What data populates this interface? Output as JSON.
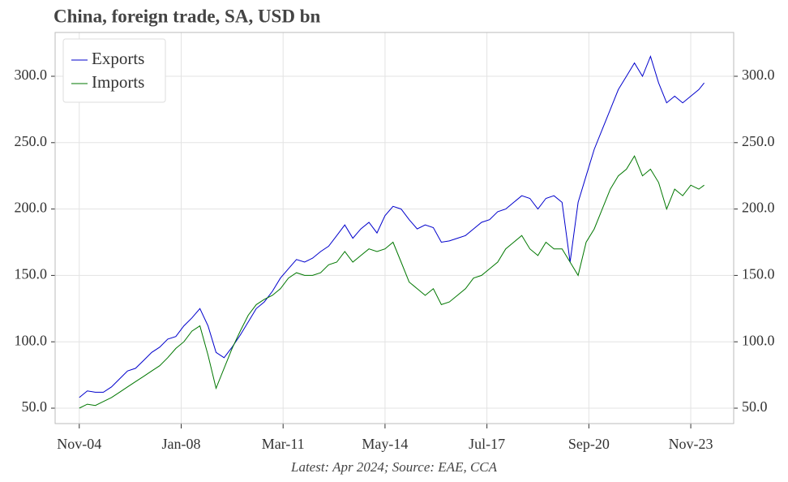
{
  "chart_data": {
    "type": "line",
    "title": "China, foreign trade, SA, USD bn",
    "footnote": "Latest: Apr 2024; Source: EAE, CCA",
    "x": [
      "2004-11",
      "2005-02",
      "2005-05",
      "2005-08",
      "2005-11",
      "2006-02",
      "2006-05",
      "2006-08",
      "2006-11",
      "2007-02",
      "2007-05",
      "2007-08",
      "2007-11",
      "2008-02",
      "2008-05",
      "2008-08",
      "2008-11",
      "2009-02",
      "2009-05",
      "2009-08",
      "2009-11",
      "2010-02",
      "2010-05",
      "2010-08",
      "2010-11",
      "2011-02",
      "2011-05",
      "2011-08",
      "2011-11",
      "2012-02",
      "2012-05",
      "2012-08",
      "2012-11",
      "2013-02",
      "2013-05",
      "2013-08",
      "2013-11",
      "2014-02",
      "2014-05",
      "2014-08",
      "2014-11",
      "2015-02",
      "2015-05",
      "2015-08",
      "2015-11",
      "2016-02",
      "2016-05",
      "2016-08",
      "2016-11",
      "2017-02",
      "2017-05",
      "2017-08",
      "2017-11",
      "2018-02",
      "2018-05",
      "2018-08",
      "2018-11",
      "2019-02",
      "2019-05",
      "2019-08",
      "2019-11",
      "2020-02",
      "2020-05",
      "2020-08",
      "2020-11",
      "2021-02",
      "2021-05",
      "2021-08",
      "2021-11",
      "2022-02",
      "2022-05",
      "2022-08",
      "2022-11",
      "2023-02",
      "2023-05",
      "2023-08",
      "2023-11",
      "2024-02",
      "2024-04"
    ],
    "series": [
      {
        "name": "Exports",
        "color": "#0000cc",
        "values": [
          58,
          63,
          62,
          62,
          66,
          72,
          78,
          80,
          86,
          92,
          96,
          102,
          104,
          112,
          118,
          125,
          112,
          92,
          88,
          96,
          105,
          115,
          125,
          130,
          138,
          148,
          155,
          162,
          160,
          163,
          168,
          172,
          180,
          188,
          178,
          185,
          190,
          182,
          195,
          202,
          200,
          192,
          185,
          188,
          186,
          175,
          176,
          178,
          180,
          185,
          190,
          192,
          198,
          200,
          205,
          210,
          208,
          200,
          208,
          210,
          205,
          160,
          205,
          225,
          245,
          260,
          275,
          290,
          300,
          310,
          300,
          315,
          295,
          280,
          285,
          280,
          285,
          290,
          295
        ]
      },
      {
        "name": "Imports",
        "color": "#007700",
        "values": [
          50,
          53,
          52,
          55,
          58,
          62,
          66,
          70,
          74,
          78,
          82,
          88,
          95,
          100,
          108,
          112,
          90,
          65,
          80,
          95,
          108,
          120,
          128,
          132,
          135,
          140,
          148,
          152,
          150,
          150,
          152,
          158,
          160,
          168,
          160,
          165,
          170,
          168,
          170,
          175,
          160,
          145,
          140,
          135,
          140,
          128,
          130,
          135,
          140,
          148,
          150,
          155,
          160,
          170,
          175,
          180,
          170,
          165,
          175,
          170,
          170,
          160,
          150,
          175,
          185,
          200,
          215,
          225,
          230,
          240,
          225,
          230,
          220,
          200,
          215,
          210,
          218,
          215,
          218
        ]
      }
    ],
    "xlim": [
      "2004-02",
      "2025-03"
    ],
    "xticks": [
      {
        "value": "2004-11",
        "label": "Nov-04"
      },
      {
        "value": "2008-01",
        "label": "Jan-08"
      },
      {
        "value": "2011-03",
        "label": "Mar-11"
      },
      {
        "value": "2014-05",
        "label": "May-14"
      },
      {
        "value": "2017-07",
        "label": "Jul-17"
      },
      {
        "value": "2020-09",
        "label": "Sep-20"
      },
      {
        "value": "2023-11",
        "label": "Nov-23"
      }
    ],
    "ylim": [
      38.4,
      333
    ],
    "yticks": [
      {
        "value": 50,
        "label": "50.0"
      },
      {
        "value": 100,
        "label": "100.0"
      },
      {
        "value": 150,
        "label": "150.0"
      },
      {
        "value": 200,
        "label": "200.0"
      },
      {
        "value": 250,
        "label": "250.0"
      },
      {
        "value": 300,
        "label": "300.0"
      }
    ],
    "grid": true,
    "legend": "upper left"
  }
}
